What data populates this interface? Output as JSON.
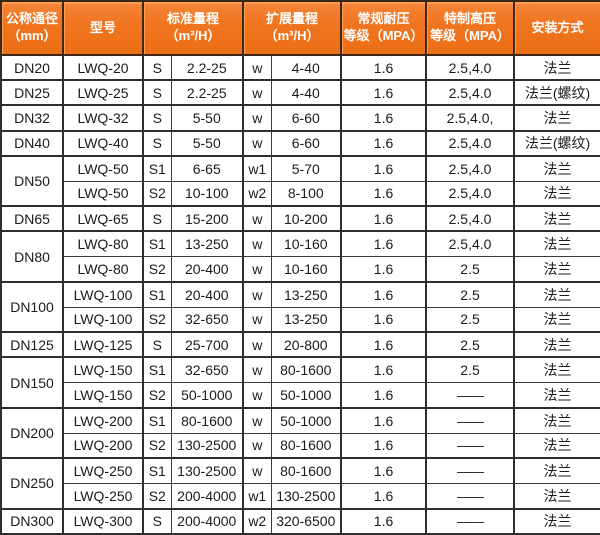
{
  "colors": {
    "header_bg": "#f0741e",
    "header_highlight": "#ff9d55",
    "header_border": "#3d2817",
    "grid_border": "#2e2e2e",
    "header_text": "#ffffff",
    "body_text": "#1b1b1b"
  },
  "table": {
    "headers": [
      {
        "lines": [
          "公称通径",
          "（mm）"
        ],
        "colspan": 1,
        "name": "header-nominal-diameter"
      },
      {
        "lines": [
          "型号"
        ],
        "colspan": 1,
        "name": "header-model"
      },
      {
        "lines": [
          "标准量程",
          "（m³/H）"
        ],
        "colspan": 2,
        "name": "header-standard-range"
      },
      {
        "lines": [
          "扩展量程",
          "（m³/H）"
        ],
        "colspan": 2,
        "name": "header-extended-range"
      },
      {
        "lines": [
          "常规耐压",
          "等级（MPA）"
        ],
        "colspan": 1,
        "name": "header-normal-pressure"
      },
      {
        "lines": [
          "特制高压",
          "等级（MPA）"
        ],
        "colspan": 1,
        "name": "header-special-high-pressure"
      },
      {
        "lines": [
          "安装方式"
        ],
        "colspan": 1,
        "name": "header-installation"
      }
    ],
    "rows": [
      {
        "dn": "DN20",
        "dn_rowspan": 1,
        "model": "LWQ-20",
        "s": "S",
        "std": "2.2-25",
        "w": "w",
        "ext": "4-40",
        "normal": "1.6",
        "high": "2.5,4.0",
        "install": "法兰"
      },
      {
        "dn": "DN25",
        "dn_rowspan": 1,
        "model": "LWQ-25",
        "s": "S",
        "std": "2.2-25",
        "w": "w",
        "ext": "4-40",
        "normal": "1.6",
        "high": "2.5,4.0",
        "install": "法兰(螺纹)"
      },
      {
        "dn": "DN32",
        "dn_rowspan": 1,
        "model": "LWQ-32",
        "s": "S",
        "std": "5-50",
        "w": "w",
        "ext": "6-60",
        "normal": "1.6",
        "high": "2.5,4.0,",
        "install": "法兰"
      },
      {
        "dn": "DN40",
        "dn_rowspan": 1,
        "model": "LWQ-40",
        "s": "S",
        "std": "5-50",
        "w": "w",
        "ext": "6-60",
        "normal": "1.6",
        "high": "2.5,4.0",
        "install": "法兰(螺纹)"
      },
      {
        "dn": "DN50",
        "dn_rowspan": 2,
        "model": "LWQ-50",
        "s": "S1",
        "std": "6-65",
        "w": "w1",
        "ext": "5-70",
        "normal": "1.6",
        "high": "2.5,4.0",
        "install": "法兰"
      },
      {
        "dn": null,
        "dn_rowspan": 0,
        "model": "LWQ-50",
        "s": "S2",
        "std": "10-100",
        "w": "w2",
        "ext": "8-100",
        "normal": "1.6",
        "high": "2.5,4.0",
        "install": "法兰"
      },
      {
        "dn": "DN65",
        "dn_rowspan": 1,
        "model": "LWQ-65",
        "s": "S",
        "std": "15-200",
        "w": "w",
        "ext": "10-200",
        "normal": "1.6",
        "high": "2.5,4.0",
        "install": "法兰"
      },
      {
        "dn": "DN80",
        "dn_rowspan": 2,
        "model": "LWQ-80",
        "s": "S1",
        "std": "13-250",
        "w": "w",
        "ext": "10-160",
        "normal": "1.6",
        "high": "2.5,4.0",
        "install": "法兰"
      },
      {
        "dn": null,
        "dn_rowspan": 0,
        "model": "LWQ-80",
        "s": "S2",
        "std": "20-400",
        "w": "w",
        "ext": "10-160",
        "normal": "1.6",
        "high": "2.5",
        "install": "法兰"
      },
      {
        "dn": "DN100",
        "dn_rowspan": 2,
        "model": "LWQ-100",
        "s": "S1",
        "std": "20-400",
        "w": "w",
        "ext": "13-250",
        "normal": "1.6",
        "high": "2.5",
        "install": "法兰"
      },
      {
        "dn": null,
        "dn_rowspan": 0,
        "model": "LWQ-100",
        "s": "S2",
        "std": "32-650",
        "w": "w",
        "ext": "13-250",
        "normal": "1.6",
        "high": "2.5",
        "install": "法兰"
      },
      {
        "dn": "DN125",
        "dn_rowspan": 1,
        "model": "LWQ-125",
        "s": "S",
        "std": "25-700",
        "w": "w",
        "ext": "20-800",
        "normal": "1.6",
        "high": "2.5",
        "install": "法兰"
      },
      {
        "dn": "DN150",
        "dn_rowspan": 2,
        "model": "LWQ-150",
        "s": "S1",
        "std": "32-650",
        "w": "w",
        "ext": "80-1600",
        "normal": "1.6",
        "high": "2.5",
        "install": "法兰"
      },
      {
        "dn": null,
        "dn_rowspan": 0,
        "model": "LWQ-150",
        "s": "S2",
        "std": "50-1000",
        "w": "w",
        "ext": "50-1000",
        "normal": "1.6",
        "high": "——",
        "install": "法兰"
      },
      {
        "dn": "DN200",
        "dn_rowspan": 2,
        "model": "LWQ-200",
        "s": "S1",
        "std": "80-1600",
        "w": "w",
        "ext": "50-1000",
        "normal": "1.6",
        "high": "——",
        "install": "法兰"
      },
      {
        "dn": null,
        "dn_rowspan": 0,
        "model": "LWQ-200",
        "s": "S2",
        "std": "130-2500",
        "w": "w",
        "ext": "80-1600",
        "normal": "1.6",
        "high": "——",
        "install": "法兰"
      },
      {
        "dn": "DN250",
        "dn_rowspan": 2,
        "model": "LWQ-250",
        "s": "S1",
        "std": "130-2500",
        "w": "w",
        "ext": "80-1600",
        "normal": "1.6",
        "high": "——",
        "install": "法兰"
      },
      {
        "dn": null,
        "dn_rowspan": 0,
        "model": "LWQ-250",
        "s": "S2",
        "std": "200-4000",
        "w": "w1",
        "ext": "130-2500",
        "normal": "1.6",
        "high": "——",
        "install": "法兰"
      },
      {
        "dn": "DN300",
        "dn_rowspan": 1,
        "model": "LWQ-300",
        "s": "S",
        "std": "200-4000",
        "w": "w2",
        "ext": "320-6500",
        "normal": "1.6",
        "high": "——",
        "install": "法兰"
      }
    ]
  }
}
